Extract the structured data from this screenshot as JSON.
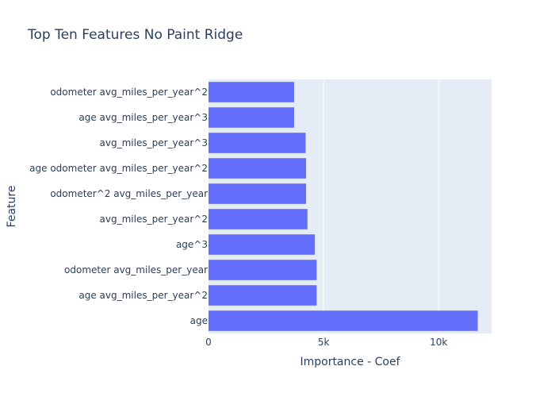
{
  "chart_data": {
    "type": "bar",
    "orientation": "horizontal",
    "title": "Top Ten Features No Paint Ridge",
    "xlabel": "Importance - Coef",
    "ylabel": "Feature",
    "categories": [
      "age",
      "age avg_miles_per_year^2",
      "odometer avg_miles_per_year",
      "age^3",
      "avg_miles_per_year^2",
      "odometer^2 avg_miles_per_year",
      "age odometer avg_miles_per_year^2",
      "avg_miles_per_year^3",
      "age avg_miles_per_year^3",
      "odometer avg_miles_per_year^2"
    ],
    "values": [
      11700,
      4700,
      4700,
      4620,
      4300,
      4240,
      4240,
      4220,
      3720,
      3720
    ],
    "xlim": [
      0,
      12300
    ],
    "x_ticks": [
      0,
      5000,
      10000
    ],
    "x_tick_labels": [
      "0",
      "5k",
      "10k"
    ],
    "grid": "x",
    "colors": {
      "bar": "#636efa",
      "plot_bg": "#e5ecf6",
      "grid": "#ffffff",
      "text": "#2a3f5f"
    }
  }
}
